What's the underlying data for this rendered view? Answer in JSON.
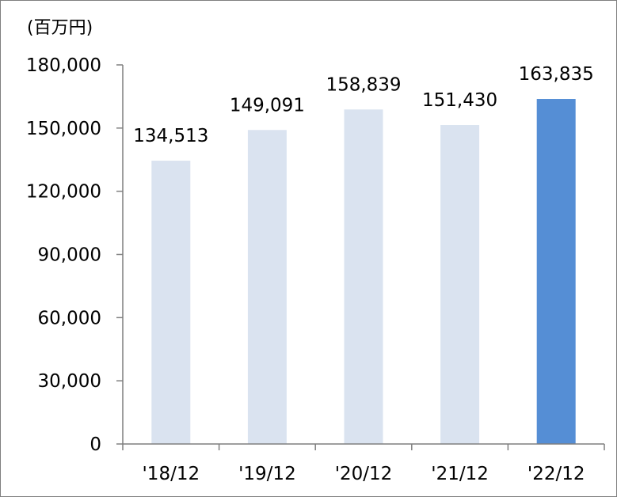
{
  "chart_data": {
    "type": "bar",
    "unit_label": "(百万円)",
    "categories": [
      "'18/12",
      "'19/12",
      "'20/12",
      "'21/12",
      "'22/12"
    ],
    "values": [
      134513,
      149091,
      158839,
      151430,
      163835
    ],
    "value_labels": [
      "134,513",
      "149,091",
      "158,839",
      "151,430",
      "163,835"
    ],
    "ylim": [
      0,
      180000
    ],
    "yticks": [
      0,
      30000,
      60000,
      90000,
      120000,
      150000,
      180000
    ],
    "ytick_labels": [
      "0",
      "30,000",
      "60,000",
      "90,000",
      "120,000",
      "150,000",
      "180,000"
    ],
    "grid": false,
    "colors": {
      "bar": "#dae3f0",
      "highlight": "#558ed5",
      "axis": "#7f7f7f"
    },
    "highlight_index": 4
  }
}
